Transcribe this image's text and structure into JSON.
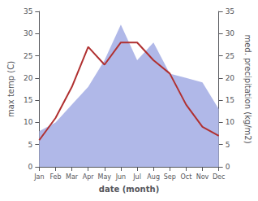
{
  "chart_data": {
    "type": "line",
    "xlabel": "date (month)",
    "ylabel": "max temp (C)",
    "y2label": "med. precipitation (kg/m2)",
    "categories": [
      "Jan",
      "Feb",
      "Mar",
      "Apr",
      "May",
      "Jun",
      "Jul",
      "Aug",
      "Sep",
      "Oct",
      "Nov",
      "Dec"
    ],
    "series": [
      {
        "type": "area",
        "axis": "y2",
        "color": "#b0b8e8",
        "values": [
          8,
          10,
          14,
          18,
          24,
          32,
          24,
          28,
          21,
          20,
          19,
          13
        ]
      },
      {
        "type": "line",
        "axis": "y",
        "color": "#b03030",
        "values": [
          6,
          11,
          18,
          27,
          23,
          28,
          28,
          24,
          21,
          14,
          9,
          7
        ]
      }
    ],
    "ylim": [
      0,
      35
    ],
    "yticks": [
      0,
      5,
      10,
      15,
      20,
      25,
      30,
      35
    ],
    "y2lim": [
      0,
      35
    ],
    "y2ticks": [
      0,
      5,
      10,
      15,
      20,
      25,
      30,
      35
    ],
    "grid": false
  }
}
